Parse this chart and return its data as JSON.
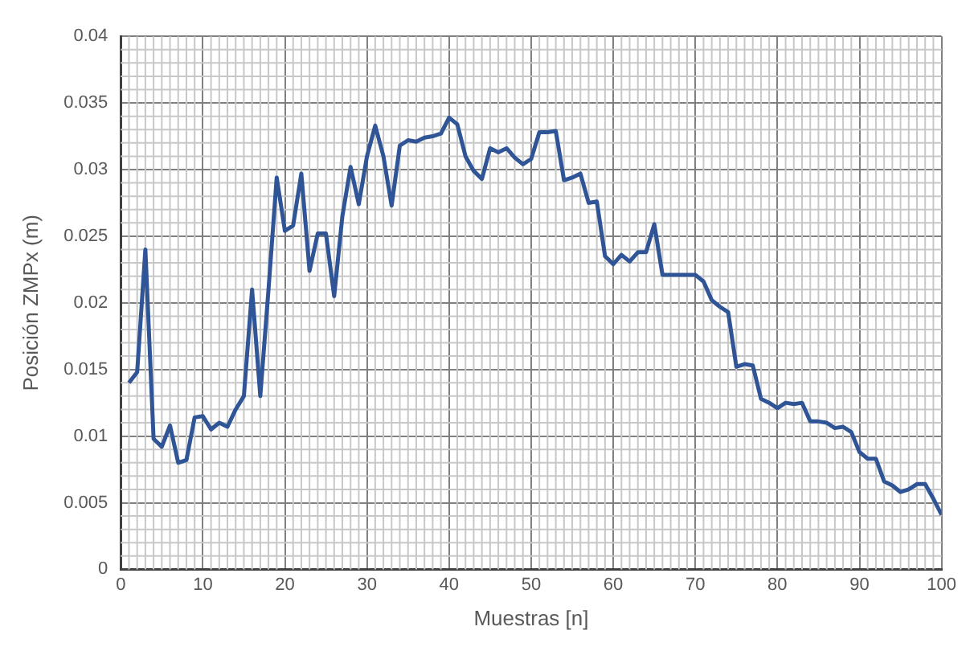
{
  "chart_data": {
    "type": "line",
    "xlabel": "Muestras [n]",
    "ylabel": "Posición ZMPx (m)",
    "x": [
      1,
      2,
      3,
      4,
      5,
      6,
      7,
      8,
      9,
      10,
      11,
      12,
      13,
      14,
      15,
      16,
      17,
      18,
      19,
      20,
      21,
      22,
      23,
      24,
      25,
      26,
      27,
      28,
      29,
      30,
      31,
      32,
      33,
      34,
      35,
      36,
      37,
      38,
      39,
      40,
      41,
      42,
      43,
      44,
      45,
      46,
      47,
      48,
      49,
      50,
      51,
      52,
      53,
      54,
      55,
      56,
      57,
      58,
      59,
      60,
      61,
      62,
      63,
      64,
      65,
      66,
      67,
      68,
      69,
      70,
      71,
      72,
      73,
      74,
      75,
      76,
      77,
      78,
      79,
      80,
      81,
      82,
      83,
      84,
      85,
      86,
      87,
      88,
      89,
      90,
      91,
      92,
      93,
      94,
      95,
      96,
      97,
      98,
      99,
      100
    ],
    "series": [
      {
        "color": "#2f5597",
        "values": [
          0.014,
          0.0148,
          0.024,
          0.0098,
          0.0092,
          0.0108,
          0.008,
          0.0082,
          0.0114,
          0.0115,
          0.0105,
          0.011,
          0.0107,
          0.012,
          0.013,
          0.021,
          0.013,
          0.021,
          0.0294,
          0.0254,
          0.0258,
          0.0297,
          0.0224,
          0.0252,
          0.0252,
          0.0205,
          0.0265,
          0.0302,
          0.0274,
          0.031,
          0.0333,
          0.031,
          0.0273,
          0.0318,
          0.0322,
          0.0321,
          0.0324,
          0.0325,
          0.0327,
          0.0339,
          0.0334,
          0.031,
          0.0299,
          0.0293,
          0.0316,
          0.0313,
          0.0316,
          0.0309,
          0.0304,
          0.0308,
          0.0328,
          0.0328,
          0.0329,
          0.0292,
          0.0294,
          0.0297,
          0.0275,
          0.0276,
          0.0235,
          0.0229,
          0.0236,
          0.0231,
          0.0238,
          0.0238,
          0.0259,
          0.0221,
          0.0221,
          0.0221,
          0.0221,
          0.0221,
          0.0216,
          0.0202,
          0.0197,
          0.0193,
          0.0152,
          0.0154,
          0.0153,
          0.0128,
          0.0125,
          0.0121,
          0.0125,
          0.0124,
          0.0125,
          0.0111,
          0.0111,
          0.011,
          0.0106,
          0.0107,
          0.0103,
          0.0088,
          0.0083,
          0.0083,
          0.0066,
          0.0063,
          0.0058,
          0.006,
          0.0064,
          0.0064,
          0.0053,
          0.0041
        ]
      }
    ],
    "xlim": [
      0,
      100
    ],
    "xticks": [
      0,
      10,
      20,
      30,
      40,
      50,
      60,
      70,
      80,
      90,
      100
    ],
    "ylim": [
      0,
      0.04
    ],
    "yticks": [
      0,
      0.005,
      0.01,
      0.015,
      0.02,
      0.025,
      0.03,
      0.035,
      0.04
    ],
    "grid": true,
    "legend": false,
    "marker": "none",
    "line_style": "solid"
  }
}
